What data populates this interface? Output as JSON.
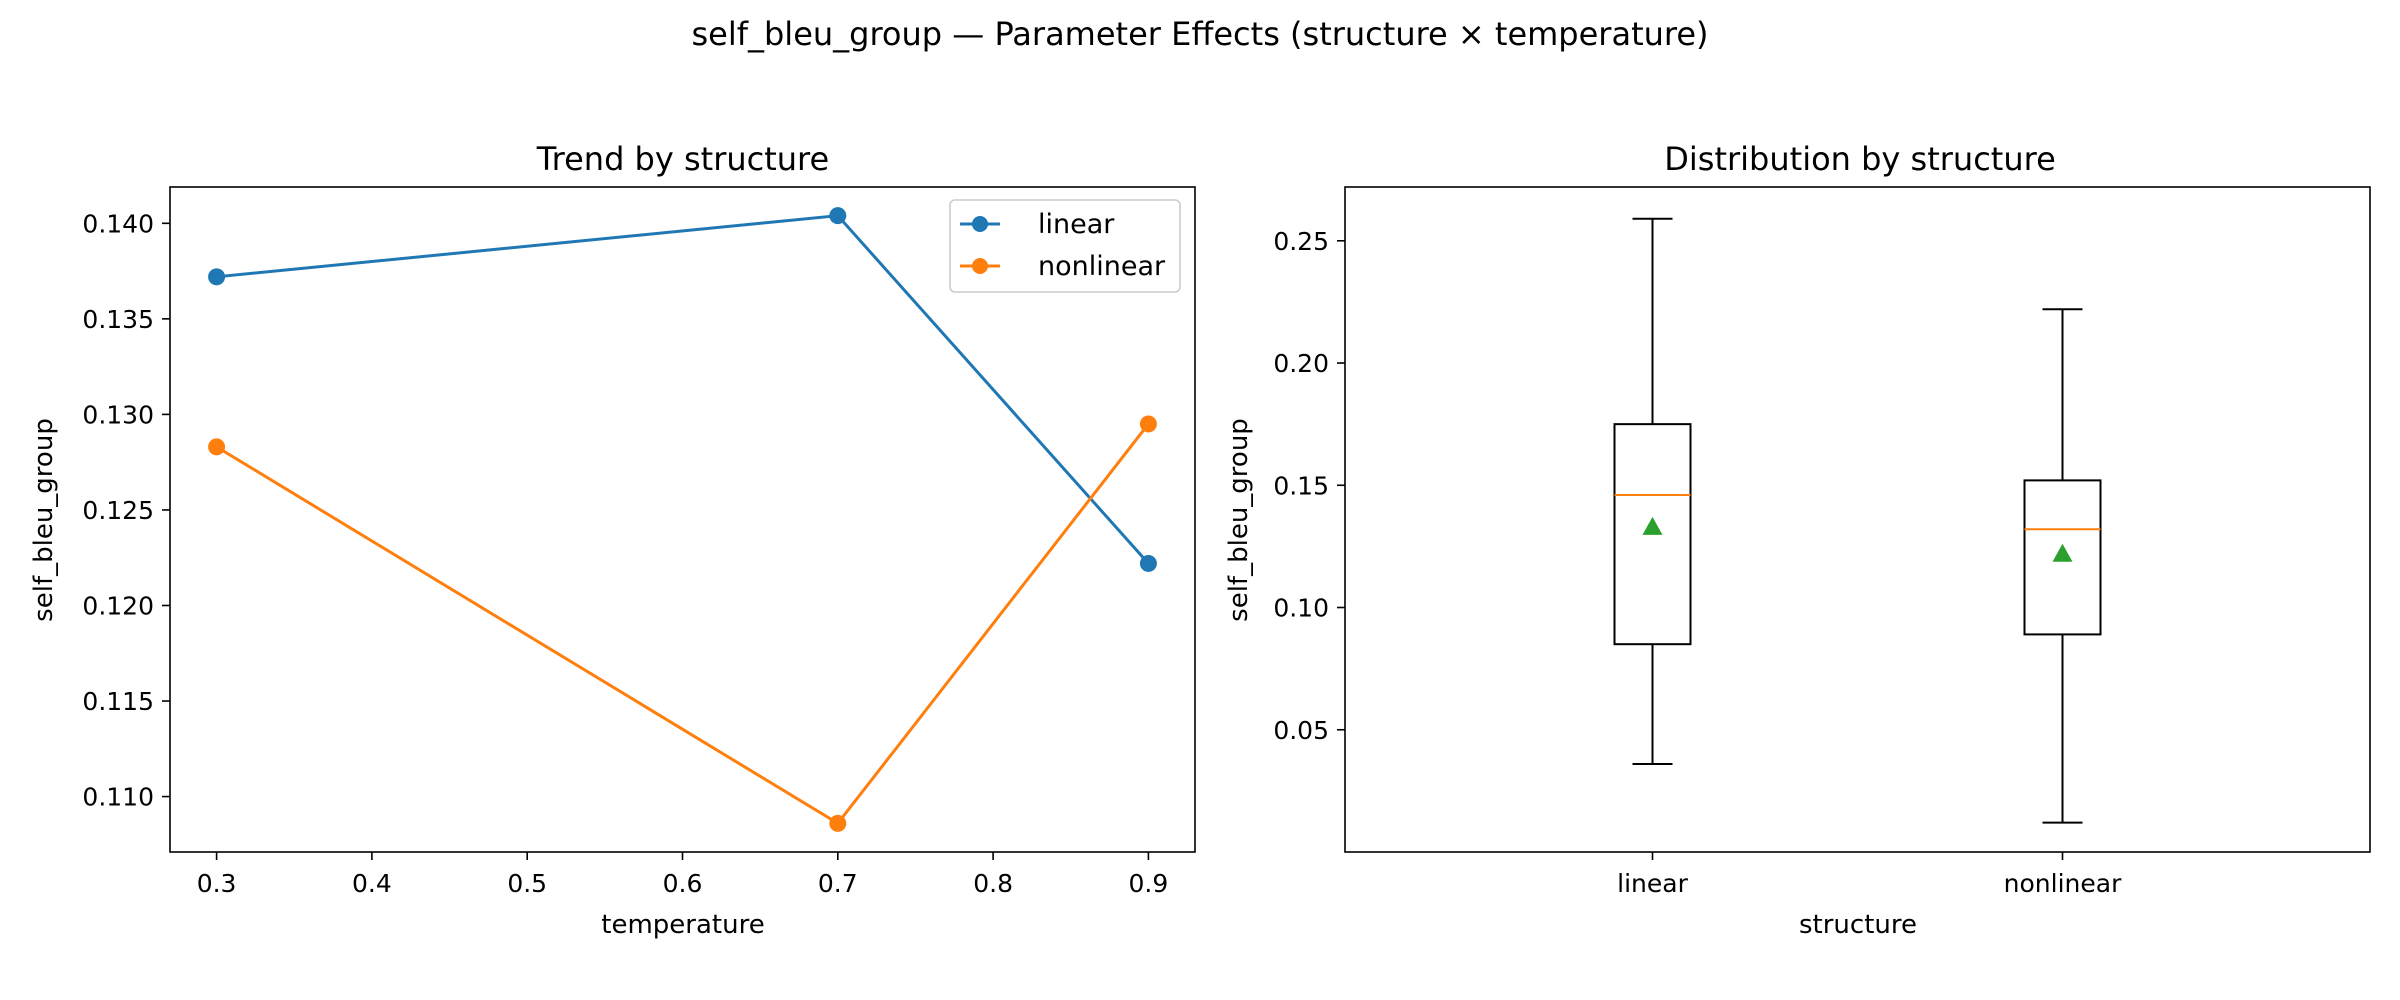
{
  "figure": {
    "suptitle": "self_bleu_group — Parameter Effects (structure × temperature)"
  },
  "chart_data": [
    {
      "type": "line",
      "title": "Trend by structure",
      "xlabel": "temperature",
      "ylabel": "self_bleu_group",
      "x": [
        0.3,
        0.7,
        0.9
      ],
      "xlim": [
        0.27,
        0.93
      ],
      "ylim": [
        0.1071,
        0.1419
      ],
      "xticks": [
        "0.3",
        "0.4",
        "0.5",
        "0.6",
        "0.7",
        "0.8",
        "0.9"
      ],
      "xtick_values": [
        0.3,
        0.4,
        0.5,
        0.6,
        0.7,
        0.8,
        0.9
      ],
      "yticks": [
        "0.110",
        "0.115",
        "0.120",
        "0.125",
        "0.130",
        "0.135",
        "0.140"
      ],
      "ytick_values": [
        0.11,
        0.115,
        0.12,
        0.125,
        0.13,
        0.135,
        0.14
      ],
      "legend_position": "top-right",
      "grid": false,
      "series": [
        {
          "name": "linear",
          "color": "#1f77b4",
          "values": [
            0.1372,
            0.1404,
            0.1222
          ]
        },
        {
          "name": "nonlinear",
          "color": "#ff7f0e",
          "values": [
            0.1283,
            0.1086,
            0.1295
          ]
        }
      ]
    },
    {
      "type": "box",
      "title": "Distribution by structure",
      "xlabel": "structure",
      "ylabel": "self_bleu_group",
      "categories": [
        "linear",
        "nonlinear"
      ],
      "ylim": [
        0.0,
        0.272
      ],
      "yticks": [
        "0.05",
        "0.10",
        "0.15",
        "0.20",
        "0.25"
      ],
      "ytick_values": [
        0.05,
        0.1,
        0.15,
        0.2,
        0.25
      ],
      "grid": false,
      "median_color": "#ff7f0e",
      "mean_color": "#2ca02c",
      "boxes": [
        {
          "category": "linear",
          "whisker_low": 0.036,
          "q1": 0.085,
          "median": 0.146,
          "q3": 0.175,
          "whisker_high": 0.259,
          "mean": 0.133
        },
        {
          "category": "nonlinear",
          "whisker_low": 0.012,
          "q1": 0.089,
          "median": 0.132,
          "q3": 0.152,
          "whisker_high": 0.222,
          "mean": 0.122
        }
      ]
    }
  ]
}
